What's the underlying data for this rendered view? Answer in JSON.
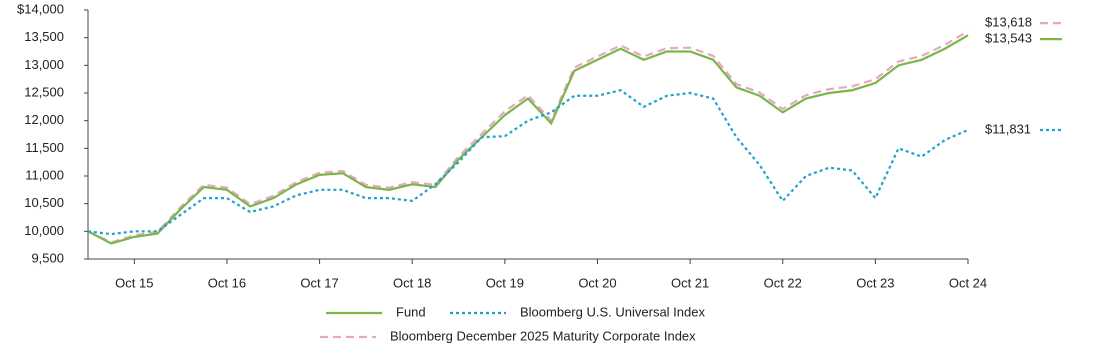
{
  "chart_data": {
    "type": "line",
    "categories": [
      null,
      null,
      "Oct 15",
      null,
      null,
      null,
      "Oct 16",
      null,
      null,
      null,
      "Oct 17",
      null,
      null,
      null,
      "Oct 18",
      null,
      null,
      null,
      "Oct 19",
      null,
      null,
      null,
      "Oct 20",
      null,
      null,
      null,
      "Oct 21",
      null,
      null,
      null,
      "Oct 22",
      null,
      null,
      null,
      "Oct 23",
      null,
      null,
      null,
      "Oct 24"
    ],
    "ylim": [
      9500,
      14000
    ],
    "yticks": [
      {
        "value": 9500,
        "label": "9,500"
      },
      {
        "value": 10000,
        "label": "10,000"
      },
      {
        "value": 10500,
        "label": "10,500"
      },
      {
        "value": 11000,
        "label": "11,000"
      },
      {
        "value": 11500,
        "label": "11,500"
      },
      {
        "value": 12000,
        "label": "12,000"
      },
      {
        "value": 12500,
        "label": "12,500"
      },
      {
        "value": 13000,
        "label": "13,000"
      },
      {
        "value": 13500,
        "label": "13,500"
      },
      {
        "value": 14000,
        "label": "$14,000"
      }
    ],
    "series": [
      {
        "name": "Bloomberg December 2025 Maturity Corporate Index",
        "color": "#e8a6c5",
        "dash": "8,5",
        "last_label": "$13,618",
        "values": [
          10000,
          9800,
          9930,
          9990,
          10440,
          10840,
          10790,
          10490,
          10640,
          10890,
          11060,
          11090,
          10840,
          10790,
          10890,
          10840,
          11350,
          11760,
          12170,
          12460,
          12000,
          12960,
          13160,
          13360,
          13160,
          13310,
          13320,
          13170,
          12660,
          12510,
          12210,
          12460,
          12570,
          12620,
          12750,
          13070,
          13170,
          13370,
          13618
        ]
      },
      {
        "name": "Fund",
        "color": "#7ab648",
        "dash": "none",
        "last_label": "$13,543",
        "values": [
          10000,
          9780,
          9900,
          9960,
          10400,
          10800,
          10750,
          10450,
          10600,
          10850,
          11020,
          11050,
          10800,
          10750,
          10850,
          10800,
          11300,
          11700,
          12100,
          12400,
          11950,
          12900,
          13100,
          13300,
          13100,
          13250,
          13250,
          13100,
          12600,
          12450,
          12150,
          12400,
          12500,
          12550,
          12680,
          13000,
          13100,
          13300,
          13543
        ]
      },
      {
        "name": "Bloomberg U.S. Universal Index",
        "color": "#1fa3c9",
        "dash": "3,3",
        "last_label": "$11,831",
        "values": [
          10000,
          9950,
          10000,
          10000,
          10300,
          10600,
          10600,
          10350,
          10450,
          10650,
          10750,
          10750,
          10600,
          10600,
          10550,
          10850,
          11250,
          11700,
          11720,
          12000,
          12150,
          12450,
          12450,
          12550,
          12250,
          12450,
          12500,
          12400,
          11700,
          11200,
          10550,
          11000,
          11150,
          11100,
          10600,
          11500,
          11350,
          11650,
          11831
        ]
      }
    ]
  }
}
